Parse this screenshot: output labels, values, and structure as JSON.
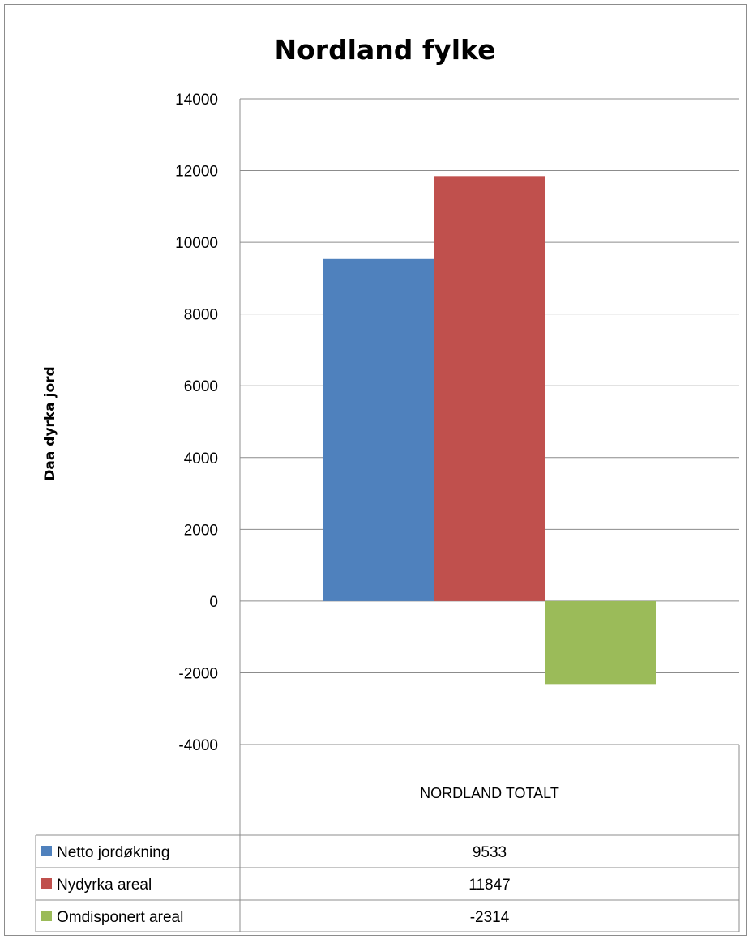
{
  "chart_data": {
    "type": "bar",
    "title": "Nordland fylke",
    "xlabel": "",
    "ylabel": "Daa dyrka  jord",
    "categories": [
      "NORDLAND TOTALT"
    ],
    "series": [
      {
        "name": "Netto jordøkning",
        "values": [
          9533
        ],
        "color": "#4F81BD"
      },
      {
        "name": "Nydyrka areal",
        "values": [
          11847
        ],
        "color": "#C0504D"
      },
      {
        "name": "Omdisponert areal",
        "values": [
          -2314
        ],
        "color": "#9BBB59"
      }
    ],
    "ylim": [
      -4000,
      14000
    ],
    "yticks": [
      "14000",
      "12000",
      "10000",
      "8000",
      "6000",
      "4000",
      "2000",
      "0",
      "-2000",
      "-4000"
    ],
    "data_table": [
      {
        "legend": "Netto jordøkning",
        "value": "9533"
      },
      {
        "legend": "Nydyrka areal",
        "value": "11847"
      },
      {
        "legend": "Omdisponert areal",
        "value": "-2314"
      }
    ],
    "grid": true,
    "legend": "data-table"
  }
}
